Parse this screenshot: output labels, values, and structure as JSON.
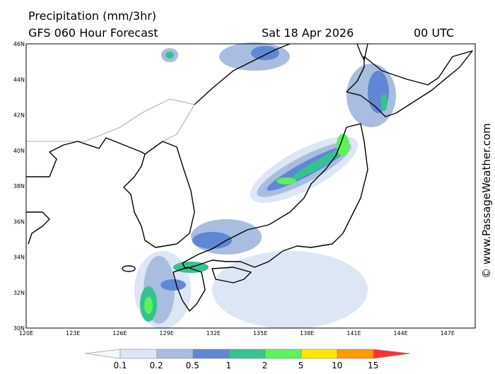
{
  "header": {
    "title": "Precipitation (mm/3hr)",
    "model": "GFS 060 Hour Forecast",
    "date": "Sat 18 Apr 2026",
    "time": "00 UTC"
  },
  "map": {
    "lon_labels": [
      "120E",
      "123E",
      "126E",
      "129E",
      "132E",
      "135E",
      "138E",
      "141E",
      "144E",
      "147E"
    ],
    "lat_labels": [
      "46N",
      "44N",
      "42N",
      "40N",
      "38N",
      "36N",
      "34N",
      "32N",
      "30N"
    ]
  },
  "legend": {
    "labels": [
      "0.1",
      "0.2",
      "0.5",
      "1",
      "2",
      "5",
      "10",
      "15"
    ]
  },
  "watermark": "© www.PassageWeather.com"
}
